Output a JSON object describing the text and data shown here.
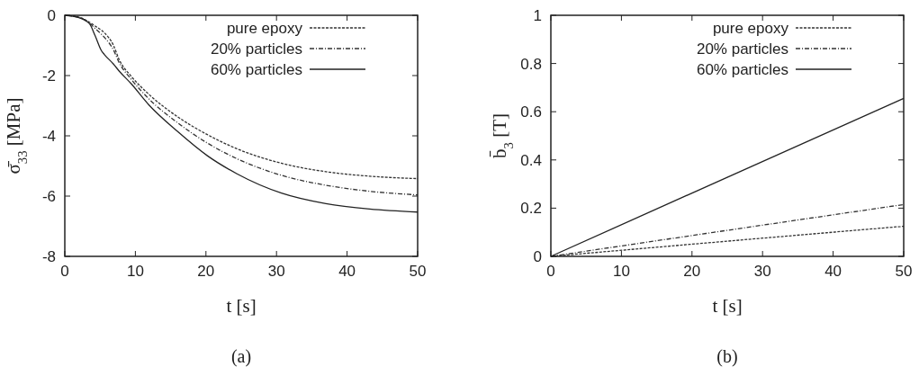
{
  "chart_data": [
    {
      "type": "line",
      "title": "(a)",
      "xlabel": "t [s]",
      "ylabel": "σ̄$_{33}$ [MPa]",
      "xlim": [
        0,
        50
      ],
      "ylim": [
        -8,
        0
      ],
      "xticks": [
        0,
        10,
        20,
        30,
        40,
        50
      ],
      "yticks": [
        -8,
        -6,
        -4,
        -2,
        0
      ],
      "grid": false,
      "legend": "top right",
      "x": [
        0,
        2,
        3.5,
        4.3,
        5.2,
        5.6,
        6.9,
        7.7,
        9.4,
        11.9,
        16,
        20.2,
        24.4,
        30.7,
        37,
        43.2,
        50
      ],
      "series": [
        {
          "name": "pure epoxy",
          "color": "#333333",
          "line_style": "dashed",
          "values": [
            0,
            -0.06,
            -0.23,
            -0.36,
            -0.5,
            -0.58,
            -1.0,
            -1.47,
            -2.02,
            -2.62,
            -3.37,
            -3.96,
            -4.43,
            -4.91,
            -5.19,
            -5.34,
            -5.42
          ]
        },
        {
          "name": "20% particles",
          "color": "#333333",
          "line_style": "dotted",
          "values": [
            0,
            -0.07,
            -0.26,
            -0.44,
            -0.63,
            -0.73,
            -1.15,
            -1.57,
            -2.12,
            -2.77,
            -3.57,
            -4.24,
            -4.76,
            -5.31,
            -5.64,
            -5.84,
            -5.96
          ]
        },
        {
          "name": "60% particles",
          "color": "#222222",
          "line_style": "solid",
          "values": [
            0,
            -0.08,
            -0.28,
            -0.68,
            -1.18,
            -1.3,
            -1.62,
            -1.85,
            -2.27,
            -2.97,
            -3.86,
            -4.66,
            -5.26,
            -5.9,
            -6.25,
            -6.43,
            -6.53
          ]
        }
      ]
    },
    {
      "type": "line",
      "title": "(b)",
      "xlabel": "t [s]",
      "ylabel": "b̄$_{3}$ [T]",
      "xlim": [
        0,
        50
      ],
      "ylim": [
        0,
        1
      ],
      "xticks": [
        0,
        10,
        20,
        30,
        40,
        50
      ],
      "yticks": [
        0,
        0.2,
        0.4,
        0.6,
        0.8,
        1
      ],
      "grid": false,
      "legend": "top right",
      "x": [
        0,
        25,
        50
      ],
      "series": [
        {
          "name": "pure epoxy",
          "color": "#333333",
          "line_style": "dashed",
          "values": [
            0,
            0.063,
            0.125
          ]
        },
        {
          "name": "20% particles",
          "color": "#333333",
          "line_style": "dotted",
          "values": [
            0,
            0.108,
            0.215
          ]
        },
        {
          "name": "60% particles",
          "color": "#222222",
          "line_style": "solid",
          "values": [
            0,
            0.328,
            0.655
          ]
        }
      ]
    }
  ]
}
